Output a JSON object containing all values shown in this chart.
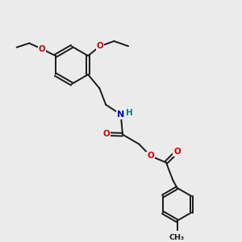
{
  "bg_color": "#ebebeb",
  "bond_color": "#1a1a1a",
  "bond_width": 1.4,
  "N_color": "#0000cc",
  "O_color": "#cc0000",
  "H_color": "#008080",
  "figsize": [
    3.0,
    3.0
  ],
  "dpi": 100,
  "xlim": [
    0,
    10
  ],
  "ylim": [
    0,
    10
  ]
}
